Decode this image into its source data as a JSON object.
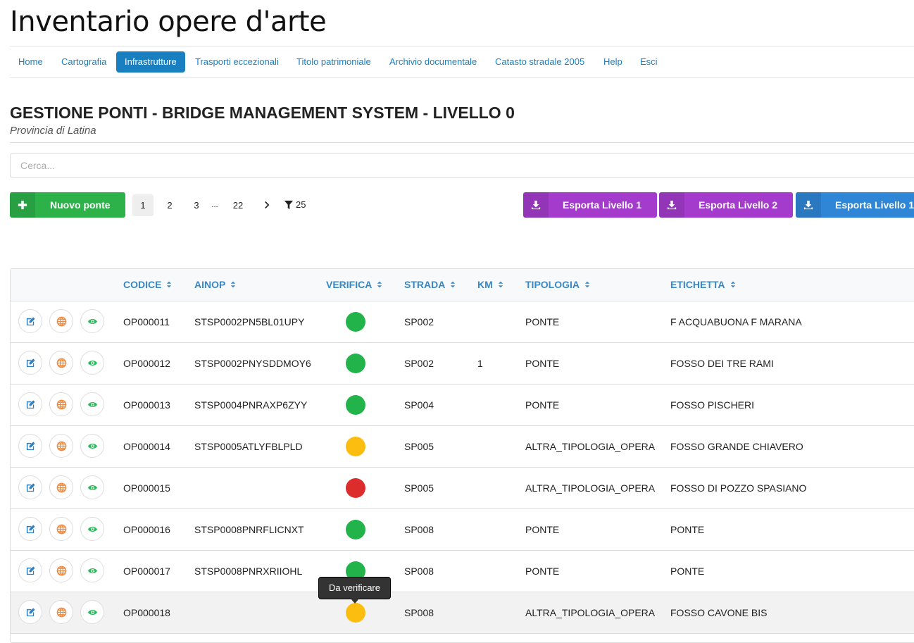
{
  "header": {
    "title": "Inventario opere d'arte"
  },
  "nav": {
    "items": [
      "Home",
      "Cartografia",
      "Infrastrutture",
      "Trasporti eccezionali",
      "Titolo patrimoniale",
      "Archivio documentale",
      "Catasto stradale 2005",
      "Help",
      "Esci"
    ],
    "active": 2
  },
  "page": {
    "title": "GESTIONE PONTI - BRIDGE MANAGEMENT SYSTEM - LIVELLO 0",
    "subtitle": "Provincia di Latina"
  },
  "search": {
    "placeholder": "Cerca..."
  },
  "toolbar": {
    "new_button": "Nuovo ponte",
    "pages": [
      1,
      2,
      3,
      "...",
      22
    ],
    "current_page": 0,
    "page_size": 25,
    "exports": [
      {
        "label": "Esporta Livello 1",
        "color": "#a43bcc"
      },
      {
        "label": "Esporta Livello 2",
        "color": "#a43bcc"
      },
      {
        "label": "Esporta Livello 1",
        "color": "#2f86d6"
      }
    ]
  },
  "table": {
    "columns": [
      "CODICE",
      "AINOP",
      "VERIFICA",
      "STRADA",
      "KM",
      "TIPOLOGIA",
      "ETICHETTA"
    ],
    "rows": [
      {
        "codice": "OP000011",
        "ainop": "STSP0002PN5BL01UPY",
        "verifica": "#22b34a",
        "strada": "SP002",
        "km": null,
        "tipologia": "PONTE",
        "etichetta": "F ACQUABUONA F MARANA"
      },
      {
        "codice": "OP000012",
        "ainop": "STSP0002PNYSDDMOY6",
        "verifica": "#22b34a",
        "strada": "SP002",
        "km": 1,
        "tipologia": "PONTE",
        "etichetta": "FOSSO DEI TRE RAMI"
      },
      {
        "codice": "OP000013",
        "ainop": "STSP0004PNRAXP6ZYY",
        "verifica": "#22b34a",
        "strada": "SP004",
        "km": null,
        "tipologia": "PONTE",
        "etichetta": "FOSSO PISCHERI"
      },
      {
        "codice": "OP000014",
        "ainop": "STSP0005ATLYFBLPLD",
        "verifica": "#fbbd0f",
        "strada": "SP005",
        "km": null,
        "tipologia": "ALTRA_TIPOLOGIA_OPERA",
        "etichetta": "FOSSO GRANDE CHIAVERO"
      },
      {
        "codice": "OP000015",
        "ainop": null,
        "verifica": "#dd2c2c",
        "strada": "SP005",
        "km": null,
        "tipologia": "ALTRA_TIPOLOGIA_OPERA",
        "etichetta": "FOSSO DI POZZO SPASIANO"
      },
      {
        "codice": "OP000016",
        "ainop": "STSP0008PNRFLICNXT",
        "verifica": "#22b34a",
        "strada": "SP008",
        "km": null,
        "tipologia": "PONTE",
        "etichetta": "PONTE"
      },
      {
        "codice": "OP000017",
        "ainop": "STSP0008PNRXRIIOHL",
        "verifica": "#22b34a",
        "strada": "SP008",
        "km": null,
        "tipologia": "PONTE",
        "etichetta": "PONTE"
      },
      {
        "codice": "OP000018",
        "ainop": null,
        "verifica": "#fbbd0f",
        "strada": "SP008",
        "km": null,
        "tipologia": "ALTRA_TIPOLOGIA_OPERA",
        "etichetta": "FOSSO CAVONE BIS"
      }
    ],
    "hover_row": 7
  },
  "tooltip": {
    "text": "Da verificare",
    "row": 7
  }
}
